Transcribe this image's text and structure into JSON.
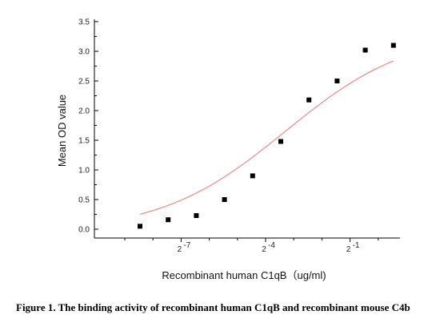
{
  "chart_data": {
    "type": "scatter",
    "title": "",
    "xlabel": "Recombinant human  C1qB（ug/ml)",
    "ylabel": "Mean OD value",
    "x_scale": "log2",
    "x_tick_labels": [
      {
        "base": "2",
        "exp": "-7",
        "log2_value": -7
      },
      {
        "base": "2",
        "exp": "-4",
        "log2_value": -4
      },
      {
        "base": "2",
        "exp": "-1",
        "log2_value": -1
      }
    ],
    "y_ticks": [
      "0.0",
      "0.5",
      "1.0",
      "1.5",
      "2.0",
      "2.5",
      "3.0",
      "3.5"
    ],
    "ylim": [
      -0.15,
      3.5
    ],
    "grid": false,
    "legend": "none",
    "series": [
      {
        "marker": "square",
        "marker_color": "#000000",
        "points": [
          {
            "log2_x": -8.46,
            "y": 0.05
          },
          {
            "log2_x": -7.46,
            "y": 0.16
          },
          {
            "log2_x": -6.46,
            "y": 0.23
          },
          {
            "log2_x": -5.46,
            "y": 0.5
          },
          {
            "log2_x": -4.46,
            "y": 0.9
          },
          {
            "log2_x": -3.46,
            "y": 1.48
          },
          {
            "log2_x": -2.46,
            "y": 2.18
          },
          {
            "log2_x": -1.46,
            "y": 2.5
          },
          {
            "log2_x": -0.46,
            "y": 3.02
          },
          {
            "log2_x": 0.54,
            "y": 3.1
          }
        ]
      }
    ],
    "fit_curve": {
      "type": "4PL",
      "color": "#e88a8a",
      "bottom": -0.05,
      "top": 3.35,
      "log2_ec50": -3.3,
      "hill_slope_per_log2": 0.65,
      "log2_x_range": [
        -8.46,
        0.54
      ]
    }
  },
  "caption": "Figure 1. The binding activity of recombinant human C1qB and recombinant mouse C4b"
}
